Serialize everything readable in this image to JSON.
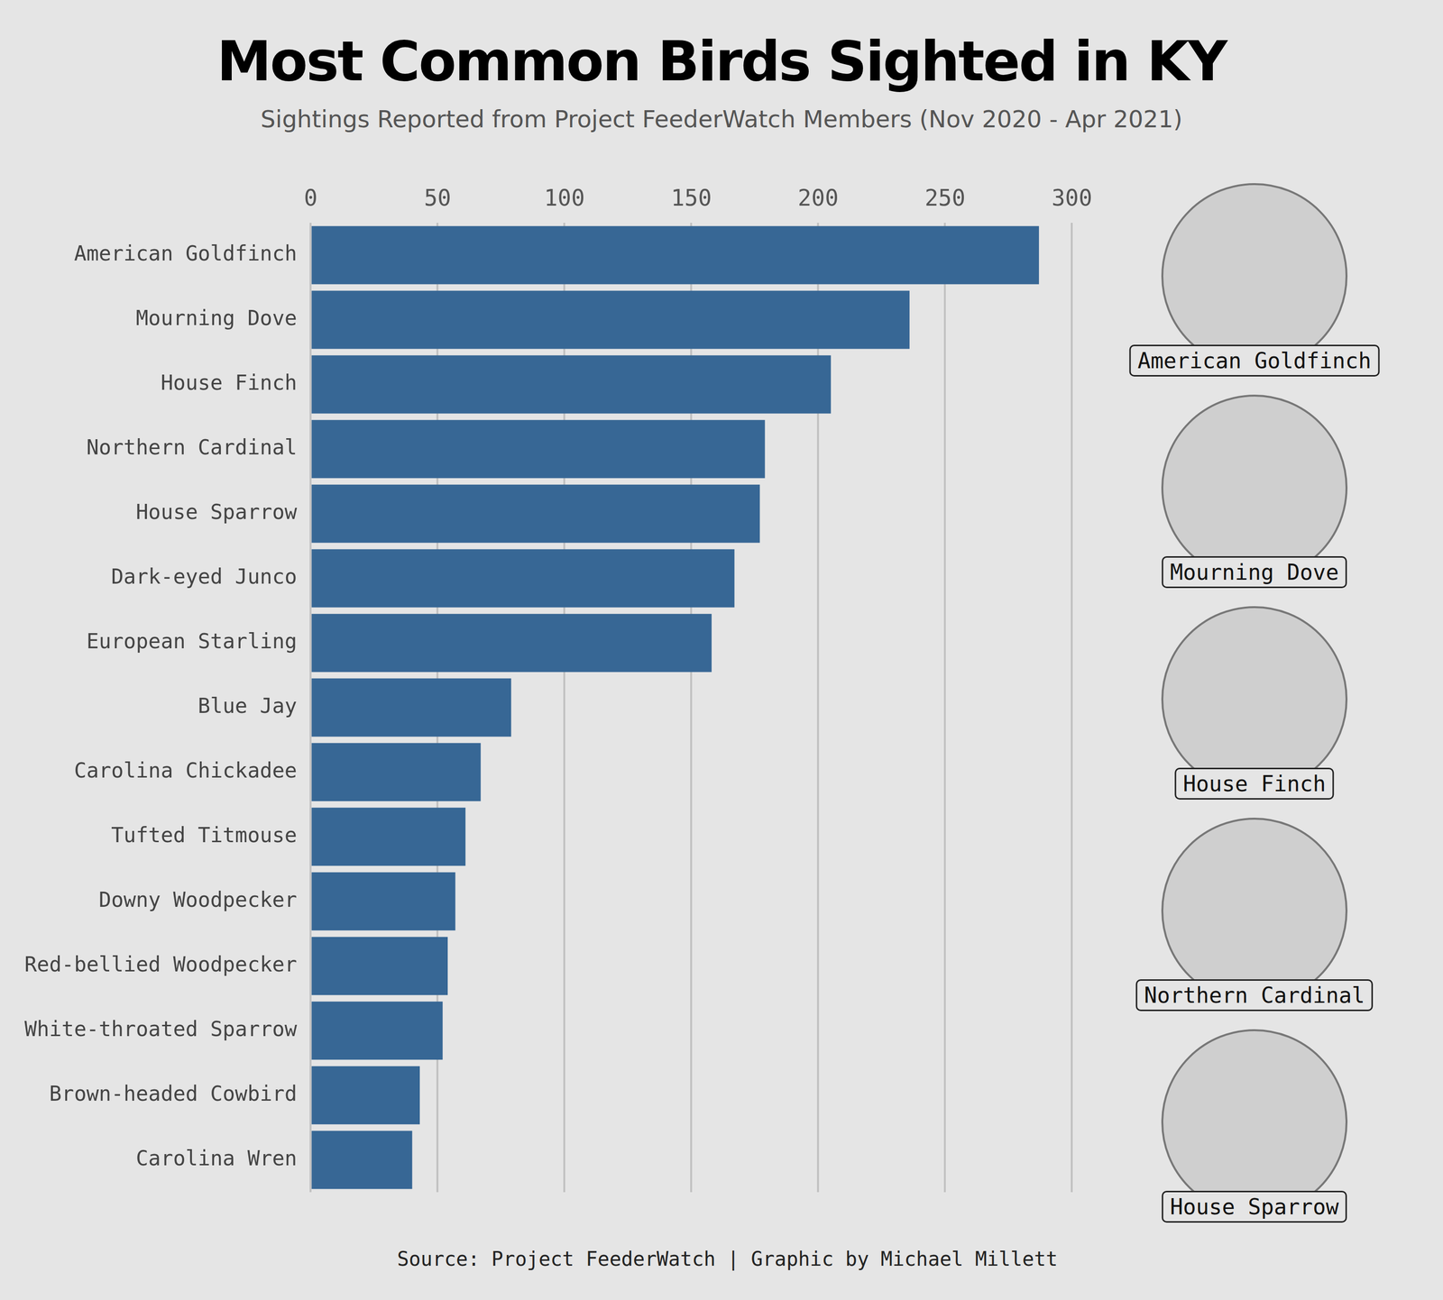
{
  "chart_data": {
    "type": "bar",
    "orientation": "horizontal",
    "title": "Most Common Birds Sighted in KY",
    "subtitle": "Sightings Reported from Project FeederWatch Members (Nov 2020 - Apr 2021)",
    "categories": [
      "American Goldfinch",
      "Mourning Dove",
      "House Finch",
      "Northern Cardinal",
      "House Sparrow",
      "Dark-eyed Junco",
      "European Starling",
      "Blue Jay",
      "Carolina Chickadee",
      "Tufted Titmouse",
      "Downy Woodpecker",
      "Red-bellied Woodpecker",
      "White-throated Sparrow",
      "Brown-headed Cowbird",
      "Carolina Wren"
    ],
    "values": [
      287,
      236,
      205,
      179,
      177,
      167,
      158,
      79,
      67,
      61,
      57,
      54,
      52,
      43,
      40
    ],
    "color": "#376795",
    "xlim": [
      0,
      300
    ],
    "xticks": [
      0,
      50,
      100,
      150,
      200,
      250,
      300
    ],
    "grid": true,
    "annotations": [
      "American Goldfinch",
      "Mourning Dove",
      "House Finch",
      "Northern Cardinal",
      "House Sparrow"
    ],
    "caption": "Source: Project FeederWatch | Graphic by Michael Millett"
  }
}
